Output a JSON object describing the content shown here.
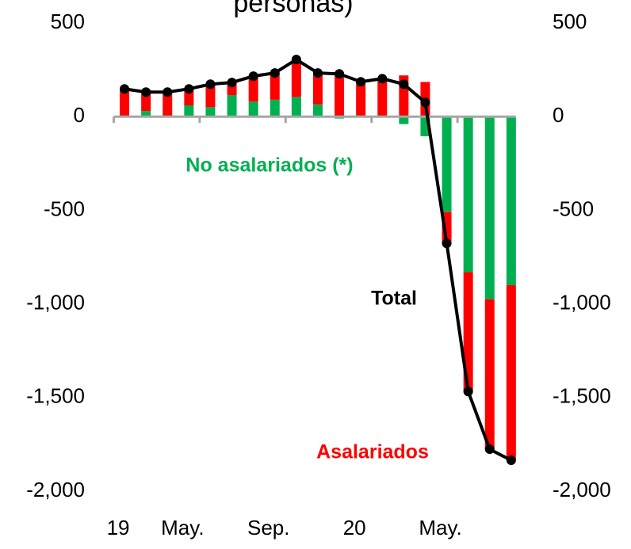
{
  "chart_data": {
    "type": "bar",
    "title": "personas)",
    "categories": [
      "19",
      null,
      null,
      "May.",
      null,
      null,
      null,
      "Sep.",
      null,
      null,
      null,
      "20",
      null,
      null,
      null,
      "May.",
      null,
      null,
      null
    ],
    "series": [
      {
        "name": "No asalariados (*)",
        "color": "#00b050",
        "values": [
          5,
          30,
          5,
          60,
          50,
          115,
          80,
          90,
          105,
          65,
          -10,
          5,
          5,
          -40,
          -105,
          -510,
          -830,
          -975,
          -900
        ]
      },
      {
        "name": "Asalariados",
        "color": "#ff0000",
        "values": [
          143,
          101,
          126,
          88,
          123,
          67,
          136,
          143,
          200,
          168,
          238,
          181,
          198,
          220,
          185,
          -167,
          -640,
          -800,
          -935
        ]
      },
      {
        "name": "Total",
        "color": "#000000",
        "type": "line",
        "values": [
          148,
          131,
          131,
          148,
          173,
          182,
          216,
          233,
          305,
          233,
          228,
          186,
          203,
          173,
          76,
          -677,
          -1468,
          -1776,
          -1835
        ]
      }
    ],
    "ylim": [
      -2000,
      500
    ],
    "yticks": [
      {
        "value": -2000,
        "label": "-2,000"
      },
      {
        "value": -1500,
        "label": "-1,500"
      },
      {
        "value": -1000,
        "label": "-1,000"
      },
      -500,
      0,
      500
    ]
  }
}
